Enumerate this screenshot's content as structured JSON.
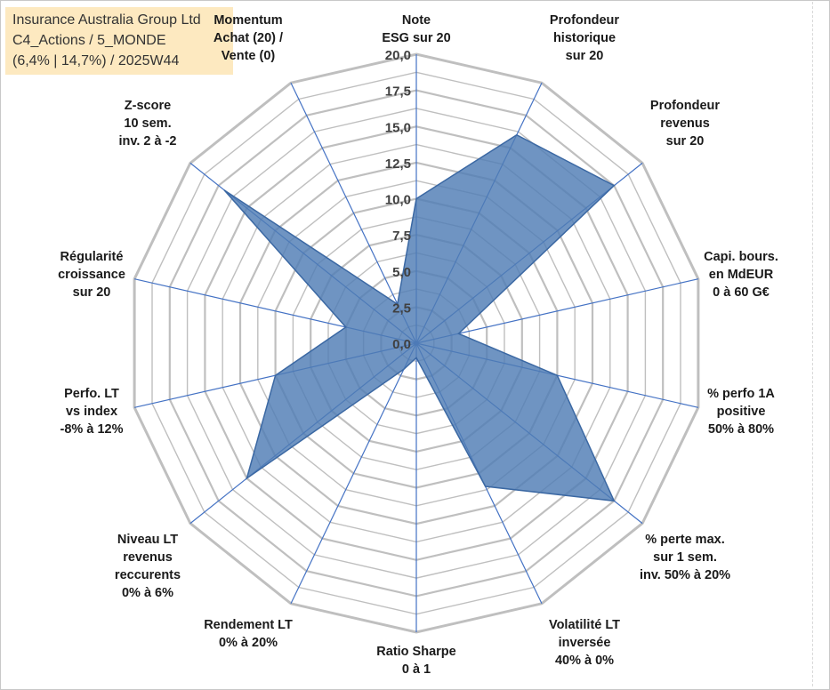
{
  "title": {
    "line1": "Insurance Australia Group Ltd",
    "line2": "C4_Actions / 5_MONDE",
    "line3": "(6,4% | 14,7%) / 2025W44"
  },
  "chart_data": {
    "type": "radar",
    "rmin": 0,
    "rmax": 20,
    "ticks": [
      "0,0",
      "2,5",
      "5,0",
      "7,5",
      "10,0",
      "12,5",
      "15,0",
      "17,5",
      "20,0"
    ],
    "tick_values": [
      0,
      2.5,
      5,
      7.5,
      10,
      12.5,
      15,
      17.5,
      20
    ],
    "axes": [
      {
        "lines": [
          "Note",
          "ESG sur 20"
        ],
        "value": 10
      },
      {
        "lines": [
          "Profondeur",
          "historique",
          "sur 20"
        ],
        "value": 16
      },
      {
        "lines": [
          "Profondeur",
          "revenus",
          "sur 20"
        ],
        "value": 17.5
      },
      {
        "lines": [
          "Capi. bours.",
          "en MdEUR",
          "0 à 60 G€"
        ],
        "value": 3
      },
      {
        "lines": [
          "% perfo 1A",
          "positive",
          "50% à 80%"
        ],
        "value": 10
      },
      {
        "lines": [
          "% perte max.",
          "sur 1 sem.",
          "inv. 50% à 20%"
        ],
        "value": 17.5
      },
      {
        "lines": [
          "Volatilité LT",
          "inversée",
          "40% à 0%"
        ],
        "value": 11
      },
      {
        "lines": [
          "Ratio Sharpe",
          "0 à 1"
        ],
        "value": 1
      },
      {
        "lines": [
          "Rendement LT",
          "0% à 20%"
        ],
        "value": 2
      },
      {
        "lines": [
          "Niveau LT",
          "revenus",
          "reccurents",
          "0% à 6%"
        ],
        "value": 15
      },
      {
        "lines": [
          "Perfo. LT",
          "vs index",
          "-8% à 12%"
        ],
        "value": 10
      },
      {
        "lines": [
          "Régularité",
          "croissance",
          "sur 20"
        ],
        "value": 5
      },
      {
        "lines": [
          "Z-score",
          "10 sem.",
          "inv. 2 à -2"
        ],
        "value": 17
      },
      {
        "lines": [
          "Momentum",
          "Achat (20) /",
          "Vente (0)"
        ],
        "value": 3
      }
    ],
    "colors": {
      "fill": "#4f7db5",
      "stroke": "#3b68a3",
      "grid": "#bfbfbf",
      "spoke": "#4472c4"
    }
  }
}
